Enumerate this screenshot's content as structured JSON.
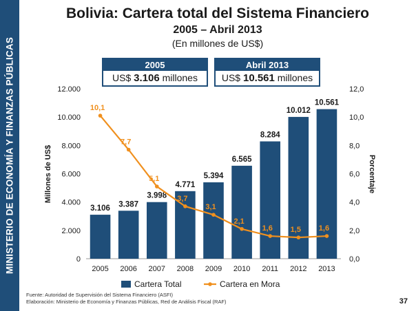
{
  "sidebar": {
    "text": "MINISTERIO DE ECONOMÍA Y FINANZAS PÚBLICAS"
  },
  "header": {
    "title": "Bolivia: Cartera total del Sistema Financiero",
    "subtitle": "2005 – Abril 2013",
    "units": "(En millones de US$)"
  },
  "highlights": [
    {
      "label": "2005",
      "prefix": "US$",
      "value": "3.106",
      "suffix": "millones"
    },
    {
      "label": "Abril 2013",
      "prefix": "US$",
      "value": "10.561",
      "suffix": "millones"
    }
  ],
  "chart_data": {
    "type": "bar",
    "categories": [
      "2005",
      "2006",
      "2007",
      "2008",
      "2009",
      "2010",
      "2011",
      "2012",
      "2013"
    ],
    "series": [
      {
        "name": "Cartera Total",
        "type": "bar",
        "axis": "left",
        "values": [
          3106,
          3387,
          3998,
          4771,
          5394,
          6565,
          8284,
          10012,
          10561
        ],
        "labels": [
          "3.106",
          "3.387",
          "3.998",
          "4.771",
          "5.394",
          "6.565",
          "8.284",
          "10.012",
          "10.561"
        ]
      },
      {
        "name": "Cartera en Mora",
        "type": "line",
        "axis": "right",
        "values": [
          10.1,
          7.7,
          5.1,
          3.7,
          3.1,
          2.1,
          1.6,
          1.5,
          1.6
        ],
        "labels": [
          "10,1",
          "7,7",
          "5,1",
          "3,7",
          "3,1",
          "2,1",
          "1,6",
          "1,5",
          "1,6"
        ]
      }
    ],
    "ylabel": "Millones de US$",
    "y2label": "Porcentaje",
    "ylim": [
      0,
      12000
    ],
    "y2lim": [
      0,
      12
    ],
    "yticks": [
      "0",
      "2.000",
      "4.000",
      "6.000",
      "8.000",
      "10.000",
      "12.000"
    ],
    "y2ticks": [
      "0,0",
      "2,0",
      "4,0",
      "6,0",
      "8,0",
      "10,0",
      "12,0"
    ],
    "colors": {
      "bar": "#1f4e79",
      "line": "#f0901e"
    },
    "legend": "bottom"
  },
  "footer": {
    "source": "Fuente: Autoridad de Supervisión del Sistema Financiero (ASFI)",
    "elaboration": "Elaboración: Ministerio de Economía y Finanzas Públicas, Red de Análisis Fiscal (RAF)",
    "page": "37"
  }
}
